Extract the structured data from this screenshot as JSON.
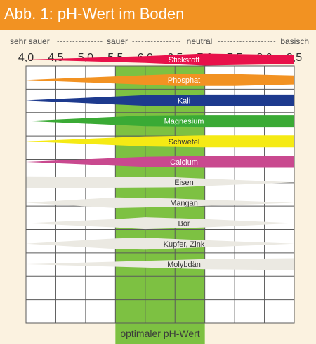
{
  "header": {
    "title": "Abb. 1: pH-Wert im Boden"
  },
  "colors": {
    "header_bg": "#f29222",
    "page_bg": "#fbf2e0",
    "plot_bg": "#ffffff",
    "optimal_zone": "#7dc142",
    "grid": "#5a5a5a",
    "micro_nutrient": "#ebe9e2"
  },
  "acidity_scale": [
    "sehr sauer",
    "sauer",
    "neutral",
    "basisch"
  ],
  "footer": {
    "label": "optimaler pH-Wert"
  },
  "chart_data": {
    "type": "area",
    "title": "Abb. 1: pH-Wert im Boden",
    "x": {
      "ticks": [
        "4,0",
        "4,5",
        "5,0",
        "5,5",
        "6,0",
        "6,5",
        "7,0",
        "7,5",
        "8,0",
        "8,5"
      ],
      "range": [
        4.0,
        8.5
      ]
    },
    "optimal_range": [
      5.5,
      7.0
    ],
    "series": [
      {
        "name": "Stickstoff",
        "color": "#e8114a",
        "text_color": "#ffffff",
        "profile": [
          [
            4.0,
            0.0
          ],
          [
            6.0,
            0.55
          ],
          [
            7.0,
            1.0
          ],
          [
            8.5,
            0.75
          ]
        ]
      },
      {
        "name": "Phosphat",
        "color": "#f29222",
        "text_color": "#ffffff",
        "profile": [
          [
            4.0,
            0.0
          ],
          [
            6.5,
            1.0
          ],
          [
            7.5,
            1.0
          ],
          [
            8.5,
            0.75
          ]
        ]
      },
      {
        "name": "Kali",
        "color": "#1d3a8e",
        "text_color": "#ffffff",
        "profile": [
          [
            4.0,
            0.0
          ],
          [
            6.0,
            0.9
          ],
          [
            7.0,
            1.0
          ],
          [
            8.5,
            1.0
          ]
        ]
      },
      {
        "name": "Magnesium",
        "color": "#3aaa35",
        "text_color": "#ffffff",
        "profile": [
          [
            4.0,
            0.0
          ],
          [
            6.0,
            0.9
          ],
          [
            7.0,
            1.0
          ],
          [
            8.5,
            1.0
          ]
        ]
      },
      {
        "name": "Schwefel",
        "color": "#f5ea14",
        "text_color": "#333333",
        "profile": [
          [
            4.0,
            0.0
          ],
          [
            6.0,
            0.85
          ],
          [
            7.0,
            1.0
          ],
          [
            8.5,
            1.0
          ]
        ]
      },
      {
        "name": "Calcium",
        "color": "#c9498f",
        "text_color": "#ffffff",
        "profile": [
          [
            4.0,
            0.0
          ],
          [
            6.0,
            0.85
          ],
          [
            7.0,
            1.0
          ],
          [
            8.5,
            1.0
          ]
        ]
      },
      {
        "name": "Eisen",
        "color": "#ebe9e2",
        "text_color": "#3a3a3a",
        "profile": [
          [
            4.0,
            1.0
          ],
          [
            6.5,
            0.85
          ],
          [
            7.5,
            0.4
          ],
          [
            8.5,
            0.0
          ]
        ]
      },
      {
        "name": "Mangan",
        "color": "#ebe9e2",
        "text_color": "#3a3a3a",
        "profile": [
          [
            4.0,
            0.0
          ],
          [
            5.5,
            0.9
          ],
          [
            6.5,
            0.7
          ],
          [
            7.5,
            0.35
          ],
          [
            8.5,
            0.0
          ]
        ]
      },
      {
        "name": "Bor",
        "color": "#ebe9e2",
        "text_color": "#3a3a3a",
        "profile": [
          [
            4.0,
            0.0
          ],
          [
            5.5,
            0.7
          ],
          [
            6.0,
            1.0
          ],
          [
            7.0,
            0.7
          ],
          [
            8.5,
            0.0
          ]
        ]
      },
      {
        "name": "Kupfer, Zink",
        "color": "#ebe9e2",
        "text_color": "#3a3a3a",
        "profile": [
          [
            4.0,
            0.0
          ],
          [
            5.5,
            0.9
          ],
          [
            6.0,
            1.0
          ],
          [
            7.0,
            0.6
          ],
          [
            8.5,
            0.0
          ]
        ]
      },
      {
        "name": "Molybdän",
        "color": "#ebe9e2",
        "text_color": "#3a3a3a",
        "profile": [
          [
            4.0,
            0.0
          ],
          [
            6.0,
            0.55
          ],
          [
            7.0,
            0.85
          ],
          [
            8.5,
            1.0
          ]
        ]
      }
    ]
  }
}
